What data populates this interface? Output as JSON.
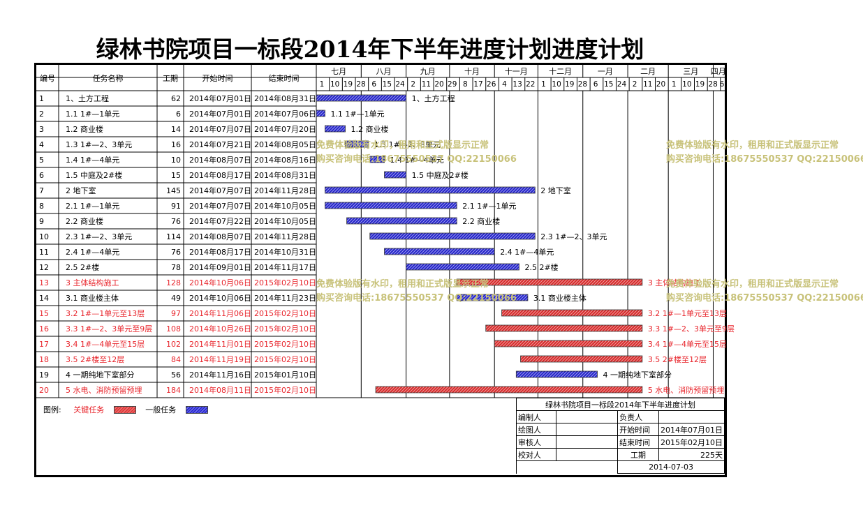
{
  "title": "绿林书院项目一标段2014年下半年进度计划进度计划",
  "headers": {
    "num": "编号",
    "name": "任务名称",
    "dur": "工期",
    "start": "开始时间",
    "end": "结束时间"
  },
  "months": [
    "七月",
    "八月",
    "九月",
    "十月",
    "十一月",
    "十二月",
    "一月",
    "二月",
    "三月",
    "四月"
  ],
  "week_ticks": [
    "1",
    "10",
    "19",
    "28",
    "6",
    "15",
    "24",
    "2",
    "11",
    "20",
    "29",
    "8",
    "17",
    "26",
    "4",
    "13",
    "22",
    "1",
    "10",
    "19",
    "28",
    "6",
    "15",
    "24",
    "2",
    "11",
    "20",
    "1",
    "10",
    "19",
    "28",
    "6"
  ],
  "tasks": [
    {
      "id": "1",
      "name": "1、土方工程",
      "dur": "62",
      "start": "2014年07月01日",
      "end": "2014年08月31日",
      "critical": false
    },
    {
      "id": "2",
      "name": "1.1 1#—1单元",
      "dur": "6",
      "start": "2014年07月01日",
      "end": "2014年07月06日",
      "critical": false
    },
    {
      "id": "3",
      "name": "1.2 商业楼",
      "dur": "14",
      "start": "2014年07月07日",
      "end": "2014年07月20日",
      "critical": false
    },
    {
      "id": "4",
      "name": "1.3 1#—2、3单元",
      "dur": "16",
      "start": "2014年07月21日",
      "end": "2014年08月05日",
      "critical": false
    },
    {
      "id": "5",
      "name": "1.4 1#—4单元",
      "dur": "10",
      "start": "2014年08月07日",
      "end": "2014年08月16日",
      "critical": false
    },
    {
      "id": "6",
      "name": "1.5 中庭及2#楼",
      "dur": "15",
      "start": "2014年08月17日",
      "end": "2014年08月31日",
      "critical": false
    },
    {
      "id": "7",
      "name": "2 地下室",
      "dur": "145",
      "start": "2014年07月07日",
      "end": "2014年11月28日",
      "critical": false
    },
    {
      "id": "8",
      "name": "2.1 1#—1单元",
      "dur": "91",
      "start": "2014年07月07日",
      "end": "2014年10月05日",
      "critical": false
    },
    {
      "id": "9",
      "name": "2.2   商业楼",
      "dur": "76",
      "start": "2014年07月22日",
      "end": "2014年10月05日",
      "critical": false
    },
    {
      "id": "10",
      "name": "2.3 1#—2、3单元",
      "dur": "114",
      "start": "2014年08月07日",
      "end": "2014年11月28日",
      "critical": false
    },
    {
      "id": "11",
      "name": "2.4 1#—4单元",
      "dur": "76",
      "start": "2014年08月17日",
      "end": "2014年10月31日",
      "critical": false
    },
    {
      "id": "12",
      "name": "2.5  2#楼",
      "dur": "78",
      "start": "2014年09月01日",
      "end": "2014年11月17日",
      "critical": false
    },
    {
      "id": "13",
      "name": "3 主体结构施工",
      "dur": "128",
      "start": "2014年10月06日",
      "end": "2015年02月10日",
      "critical": true
    },
    {
      "id": "14",
      "name": "3.1  商业楼主体",
      "dur": "49",
      "start": "2014年10月06日",
      "end": "2014年11月23日",
      "critical": false
    },
    {
      "id": "15",
      "name": "3.2  1#—1单元至13层",
      "dur": "97",
      "start": "2014年11月06日",
      "end": "2015年02月10日",
      "critical": true
    },
    {
      "id": "16",
      "name": "3.3 1#—2、3单元至9层",
      "dur": "108",
      "start": "2014年10月26日",
      "end": "2015年02月10日",
      "critical": true
    },
    {
      "id": "17",
      "name": "3.4 1#—4单元至15层",
      "dur": "102",
      "start": "2014年11月01日",
      "end": "2015年02月10日",
      "critical": true
    },
    {
      "id": "18",
      "name": "3.5 2#楼至12层",
      "dur": "84",
      "start": "2014年11月19日",
      "end": "2015年02月10日",
      "critical": true
    },
    {
      "id": "19",
      "name": "4 一期纯地下室部分",
      "dur": "56",
      "start": "2014年11月16日",
      "end": "2015年01月10日",
      "critical": false
    },
    {
      "id": "20",
      "name": "5 水电、消防预留预埋",
      "dur": "184",
      "start": "2014年08月11日",
      "end": "2015年02月10日",
      "critical": true
    }
  ],
  "chart_data": {
    "type": "gantt",
    "timeline_start": "2014-07-01",
    "timeline_end": "2015-04-07",
    "series": [
      {
        "name": "关键任务",
        "color": "#e03a3a"
      },
      {
        "name": "一般任务",
        "color": "#2a2ad0"
      }
    ],
    "bars": [
      {
        "label": "1、土方工程",
        "start": "2014-07-01",
        "end": "2014-08-31",
        "critical": false
      },
      {
        "label": "1.1 1#—1单元",
        "start": "2014-07-01",
        "end": "2014-07-06",
        "critical": false
      },
      {
        "label": "1.2 商业楼",
        "start": "2014-07-07",
        "end": "2014-07-20",
        "critical": false
      },
      {
        "label": "1.3 1#—2、3单元",
        "start": "2014-07-21",
        "end": "2014-08-05",
        "critical": false
      },
      {
        "label": "1.4 1#—4单元",
        "start": "2014-08-07",
        "end": "2014-08-16",
        "critical": false
      },
      {
        "label": "1.5 中庭及2#楼",
        "start": "2014-08-17",
        "end": "2014-08-31",
        "critical": false
      },
      {
        "label": "2 地下室",
        "start": "2014-07-07",
        "end": "2014-11-28",
        "critical": false
      },
      {
        "label": "2.1 1#—1单元",
        "start": "2014-07-07",
        "end": "2014-10-05",
        "critical": false
      },
      {
        "label": "2.2   商业楼",
        "start": "2014-07-22",
        "end": "2014-10-05",
        "critical": false
      },
      {
        "label": "2.3 1#—2、3单元",
        "start": "2014-08-07",
        "end": "2014-11-28",
        "critical": false
      },
      {
        "label": "2.4 1#—4单元",
        "start": "2014-08-17",
        "end": "2014-10-31",
        "critical": false
      },
      {
        "label": "2.5  2#楼",
        "start": "2014-09-01",
        "end": "2014-11-17",
        "critical": false
      },
      {
        "label": "3 主体结构施工",
        "start": "2014-10-06",
        "end": "2015-02-10",
        "critical": true
      },
      {
        "label": "3.1  商业楼主体",
        "start": "2014-10-06",
        "end": "2014-11-23",
        "critical": false
      },
      {
        "label": "3.2  1#—1单元至13层",
        "start": "2014-11-06",
        "end": "2015-02-10",
        "critical": true
      },
      {
        "label": "3.3 1#—2、3单元至9层",
        "start": "2014-10-26",
        "end": "2015-02-10",
        "critical": true
      },
      {
        "label": "3.4 1#—4单元至15层",
        "start": "2014-11-01",
        "end": "2015-02-10",
        "critical": true
      },
      {
        "label": "3.5 2#楼至12层",
        "start": "2014-11-19",
        "end": "2015-02-10",
        "critical": true
      },
      {
        "label": "4 一期纯地下室部分",
        "start": "2014-11-16",
        "end": "2015-01-10",
        "critical": false
      },
      {
        "label": "5 水电、消防预留预埋",
        "start": "2014-08-11",
        "end": "2015-02-10",
        "critical": true
      }
    ]
  },
  "legend": {
    "label": "图例:",
    "critical": "关键任务",
    "normal": "一般任务"
  },
  "watermark": {
    "line1": "免费体验版有水印，租用和正式版显示正常",
    "line2": "购买咨询电话:18675550537 QQ:22150066"
  },
  "info": {
    "title": "绿林书院项目一标段2014年下半年进度计划",
    "maker": "编制人",
    "owner": "负责人",
    "drawer": "绘图人",
    "start_label": "开始时间",
    "start": "2014年07月01日",
    "reviewer": "审核人",
    "end_label": "结束时间",
    "end": "2015年02月10日",
    "checker": "校对人",
    "dur_label": "工期",
    "dur": "225天",
    "date": "2014-07-03"
  },
  "colors": {
    "critical": "#e03a3a",
    "normal": "#2a2ad0",
    "critical_text": "#e8242b",
    "watermark": "#c8c27a"
  }
}
